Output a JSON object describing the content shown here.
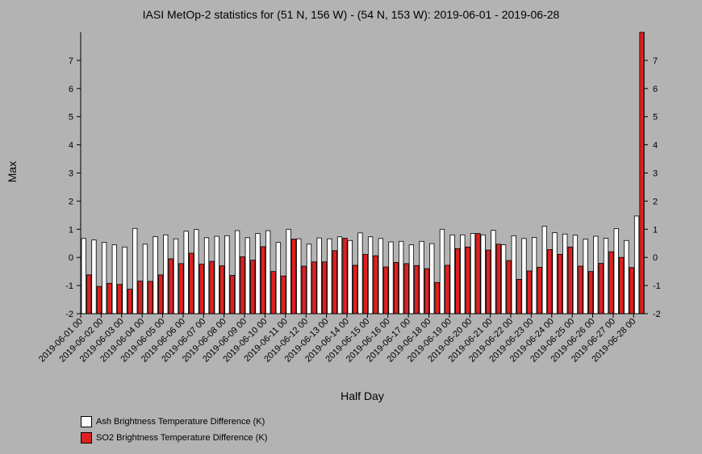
{
  "chart_data": {
    "type": "bar",
    "title": "IASI MetOp-2 statistics for (51 N, 156 W) - (54 N, 153 W): 2019-06-01 - 2019-06-28",
    "xlabel": "Half Day",
    "ylabel": "Max",
    "ylim": [
      -2,
      8
    ],
    "yticks": [
      -2,
      -1,
      0,
      1,
      2,
      3,
      4,
      5,
      6,
      7
    ],
    "tick_labels": [
      "2019-06-01 00",
      "2019-06-02 00",
      "2019-06-03 00",
      "2019-06-04 00",
      "2019-06-05 00",
      "2019-06-06 00",
      "2019-06-07 00",
      "2019-06-08 00",
      "2019-06-09 00",
      "2019-06-10 00",
      "2019-06-11 00",
      "2019-06-12 00",
      "2019-06-13 00",
      "2019-06-14 00",
      "2019-06-15 00",
      "2019-06-16 00",
      "2019-06-17 00",
      "2019-06-18 00",
      "2019-06-19 00",
      "2019-06-20 00",
      "2019-06-21 00",
      "2019-06-22 00",
      "2019-06-23 00",
      "2019-06-24 00",
      "2019-06-25 00",
      "2019-06-26 00",
      "2019-06-27 00",
      "2019-06-28 00"
    ],
    "legend_placement": "bottom-left",
    "series": [
      {
        "name": "Ash Brightness Temperature Difference (K)",
        "color": "#ffffff",
        "values": [
          0.67,
          0.62,
          0.53,
          0.45,
          0.37,
          1.03,
          0.47,
          0.74,
          0.8,
          0.66,
          0.93,
          0.99,
          0.7,
          0.75,
          0.77,
          0.95,
          0.7,
          0.85,
          0.95,
          0.53,
          1.0,
          0.66,
          0.47,
          0.69,
          0.66,
          0.73,
          0.6,
          0.87,
          0.73,
          0.67,
          0.55,
          0.57,
          0.45,
          0.57,
          0.49,
          1.0,
          0.8,
          0.8,
          0.85,
          0.8,
          0.96,
          0.45,
          0.77,
          0.67,
          0.71,
          1.11,
          0.88,
          0.83,
          0.79,
          0.65,
          0.75,
          0.68,
          1.02,
          0.6,
          1.47
        ]
      },
      {
        "name": "SO2 Brightness Temperature Difference (K)",
        "color": "#e02020",
        "values": [
          -0.62,
          -1.03,
          -0.92,
          -0.96,
          -1.13,
          -0.84,
          -0.85,
          -0.62,
          -0.05,
          -0.22,
          0.15,
          -0.24,
          -0.14,
          -0.3,
          -0.64,
          0.02,
          -0.1,
          0.38,
          -0.5,
          -0.66,
          0.65,
          -0.31,
          -0.16,
          -0.16,
          0.24,
          0.68,
          -0.28,
          0.11,
          0.06,
          -0.34,
          -0.18,
          -0.22,
          -0.29,
          -0.4,
          -0.89,
          -0.28,
          0.31,
          0.37,
          0.85,
          0.26,
          0.47,
          -0.11,
          -0.78,
          -0.48,
          -0.35,
          0.28,
          0.11,
          0.37,
          -0.31,
          -0.5,
          -0.21,
          0.2,
          0.0,
          -0.36,
          8.0
        ]
      }
    ]
  }
}
